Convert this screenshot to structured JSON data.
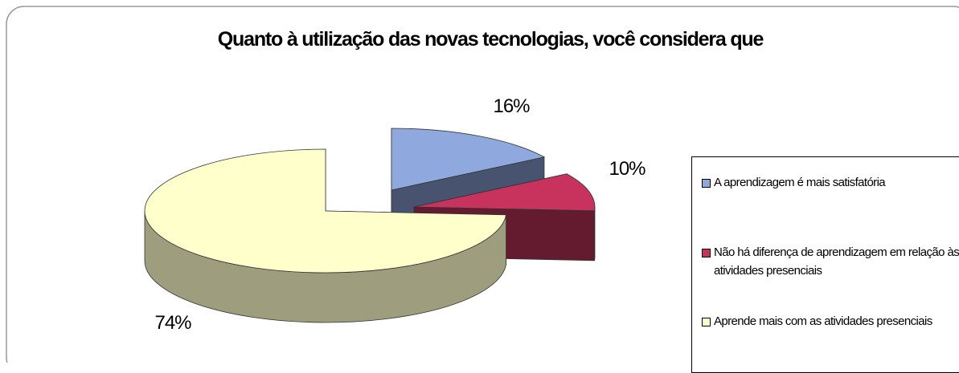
{
  "chart_data": {
    "type": "pie",
    "title": "Quanto à utilização das novas tecnologias, você considera que",
    "categories": [
      "A aprendizagem é mais satisfatória",
      "Não há diferença de aprendizagem em relação às atividades presenciais",
      "Aprende mais com as atividades presenciais"
    ],
    "values": [
      16,
      10,
      74
    ],
    "value_labels": [
      "16%",
      "10%",
      "74%"
    ],
    "colors": [
      "#8fa8de",
      "#c8335e",
      "#ffffcc"
    ],
    "legend": "right"
  }
}
